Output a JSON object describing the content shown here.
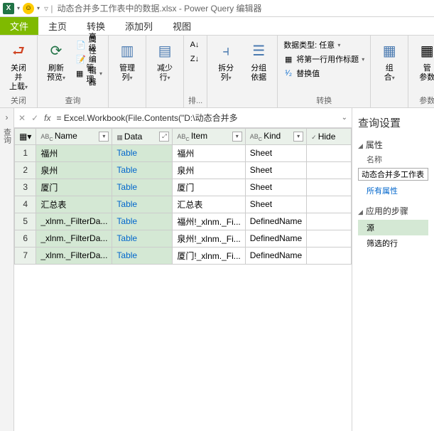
{
  "titlebar": {
    "title_text": "动态合并多工作表中的数据.xlsx - Power Query 编辑器"
  },
  "tabs": {
    "file": "文件",
    "home": "主页",
    "transform": "转换",
    "addcolumn": "添加列",
    "view": "视图"
  },
  "ribbon": {
    "close": {
      "label1": "关闭并",
      "label2": "上载",
      "group": "关闭"
    },
    "query": {
      "refresh1": "刷新",
      "refresh2": "预览",
      "props": "属性",
      "advanced": "高级编辑器",
      "manage": "管理",
      "group": "查询"
    },
    "managecol": {
      "label1": "管理",
      "label2": "列"
    },
    "reducerow": {
      "label1": "减少",
      "label2": "行"
    },
    "sort": {
      "group": "排..."
    },
    "split": {
      "label1": "拆分",
      "label2": "列",
      "groupby1": "分组",
      "groupby2": "依据"
    },
    "transform": {
      "datatype": "数据类型: 任意",
      "firstrow": "将第一行用作标题",
      "replace": "替换值",
      "group": "转换"
    },
    "combine": {
      "label1": "组",
      "label2": "合"
    },
    "params": {
      "label1": "管",
      "label2": "参数",
      "group": "参数"
    }
  },
  "formula": {
    "expr": "= Excel.Workbook(File.Contents(\"D:\\动态合并多"
  },
  "columns": {
    "name": "Name",
    "data": "Data",
    "item": "Item",
    "kind": "Kind",
    "hidden": "Hide"
  },
  "rows": [
    {
      "n": "1",
      "name": "福州",
      "data": "Table",
      "item": "福州",
      "kind": "Sheet"
    },
    {
      "n": "2",
      "name": "泉州",
      "data": "Table",
      "item": "泉州",
      "kind": "Sheet"
    },
    {
      "n": "3",
      "name": "厦门",
      "data": "Table",
      "item": "厦门",
      "kind": "Sheet"
    },
    {
      "n": "4",
      "name": "汇总表",
      "data": "Table",
      "item": "汇总表",
      "kind": "Sheet"
    },
    {
      "n": "5",
      "name": "_xlnm._FilterDa...",
      "data": "Table",
      "item": "福州!_xlnm._Fi...",
      "kind": "DefinedName"
    },
    {
      "n": "6",
      "name": "_xlnm._FilterDa...",
      "data": "Table",
      "item": "泉州!_xlnm._Fi...",
      "kind": "DefinedName"
    },
    {
      "n": "7",
      "name": "_xlnm._FilterDa...",
      "data": "Table",
      "item": "厦门!_xlnm._Fi...",
      "kind": "DefinedName"
    }
  ],
  "rightpanel": {
    "title": "查询设置",
    "props_section": "属性",
    "name_label": "名称",
    "name_value": "动态合并多工作表",
    "all_props": "所有属性",
    "steps_section": "应用的步骤",
    "step_source": "源",
    "step_filter": "筛选的行"
  },
  "colors": {
    "green": "#7fba00",
    "excel_green": "#217346",
    "sel_bg": "#d4e8d4",
    "header_bg": "#eaf1ea"
  }
}
